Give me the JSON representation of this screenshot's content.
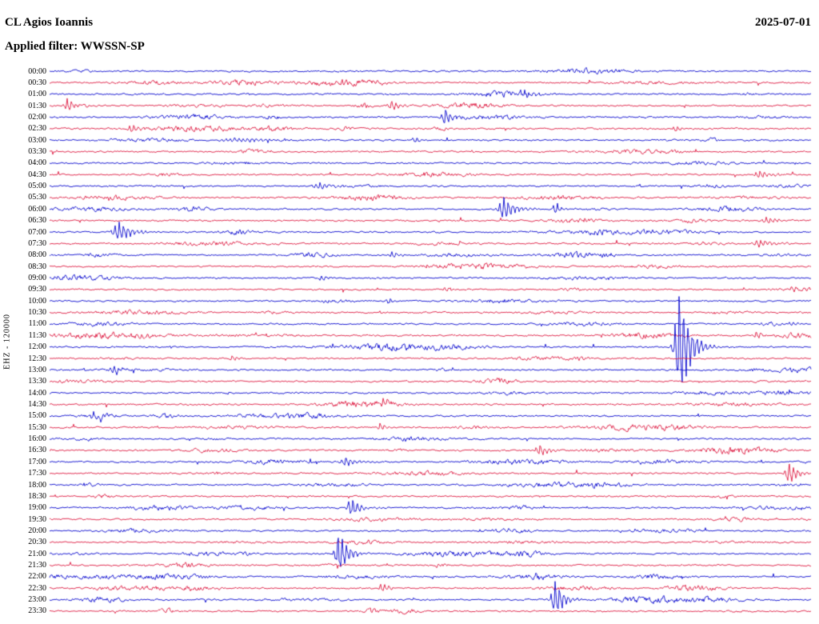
{
  "header": {
    "station": "CL Agios Ioannis",
    "date": "2025-07-01",
    "filter": "Applied filter: WWSSN-SP"
  },
  "chart_data": {
    "type": "line",
    "subtype": "helicorder-seismogram",
    "title": "CL Agios Ioannis",
    "ylabel": "EHZ - 120000",
    "rows": 48,
    "minutes_per_row": 30,
    "noise_amp": 1.15,
    "colors": {
      "even_rows": "#0000cd",
      "odd_rows": "#dc143c"
    },
    "time_labels": [
      "00:00",
      "00:30",
      "01:00",
      "01:30",
      "02:00",
      "02:30",
      "03:00",
      "03:30",
      "04:00",
      "04:30",
      "05:00",
      "05:30",
      "06:00",
      "06:30",
      "07:00",
      "07:30",
      "08:00",
      "08:30",
      "09:00",
      "09:30",
      "10:00",
      "10:30",
      "11:00",
      "11:30",
      "12:00",
      "12:30",
      "13:00",
      "13:30",
      "14:00",
      "14:30",
      "15:00",
      "15:30",
      "16:00",
      "16:30",
      "17:00",
      "17:30",
      "18:00",
      "18:30",
      "19:00",
      "19:30",
      "20:00",
      "20:30",
      "21:00",
      "21:30",
      "22:00",
      "22:30",
      "23:00",
      "23:30"
    ],
    "events": [
      {
        "time": "01:00",
        "frac": 0.623,
        "amp": 5,
        "dur": 9
      },
      {
        "time": "01:30",
        "frac": 0.024,
        "amp": 9,
        "dur": 8
      },
      {
        "time": "01:30",
        "frac": 0.45,
        "amp": 7,
        "dur": 9
      },
      {
        "time": "02:00",
        "frac": 0.52,
        "amp": 11,
        "dur": 9
      },
      {
        "time": "02:30",
        "frac": 0.108,
        "amp": 6,
        "dur": 9
      },
      {
        "time": "02:30",
        "frac": 0.822,
        "amp": 4,
        "dur": 8
      },
      {
        "time": "03:00",
        "frac": 0.25,
        "amp": 3,
        "dur": 38
      },
      {
        "time": "03:00",
        "frac": 0.481,
        "amp": 4,
        "dur": 8
      },
      {
        "time": "04:30",
        "frac": 0.933,
        "amp": 5,
        "dur": 14
      },
      {
        "time": "05:00",
        "frac": 0.355,
        "amp": 4,
        "dur": 16
      },
      {
        "time": "06:00",
        "frac": 0.597,
        "amp": 15,
        "dur": 13
      },
      {
        "time": "06:00",
        "frac": 0.665,
        "amp": 9,
        "dur": 6
      },
      {
        "time": "06:30",
        "frac": 0.943,
        "amp": 5,
        "dur": 12
      },
      {
        "time": "07:00",
        "frac": 0.092,
        "amp": 13,
        "dur": 15
      },
      {
        "time": "07:30",
        "frac": 0.933,
        "amp": 5,
        "dur": 14
      },
      {
        "time": "08:00",
        "frac": 0.45,
        "amp": 4,
        "dur": 8
      },
      {
        "time": "09:00",
        "frac": 0.357,
        "amp": 4,
        "dur": 7
      },
      {
        "time": "09:30",
        "frac": 0.519,
        "amp": 3,
        "dur": 8
      },
      {
        "time": "09:30",
        "frac": 0.975,
        "amp": 4,
        "dur": 8
      },
      {
        "time": "10:00",
        "frac": 0.446,
        "amp": 4,
        "dur": 7
      },
      {
        "time": "11:00",
        "frac": 0.975,
        "amp": 3,
        "dur": 8
      },
      {
        "time": "11:30",
        "frac": 0.928,
        "amp": 5,
        "dur": 9
      },
      {
        "time": "12:00",
        "frac": 0.828,
        "amp": 72,
        "dur": 12
      },
      {
        "time": "12:30",
        "frac": 0.24,
        "amp": 3,
        "dur": 8
      },
      {
        "time": "13:00",
        "frac": 0.085,
        "amp": 7,
        "dur": 9
      },
      {
        "time": "14:30",
        "frac": 0.439,
        "amp": 6,
        "dur": 8
      },
      {
        "time": "15:00",
        "frac": 0.056,
        "amp": 4,
        "dur": 7
      },
      {
        "time": "15:30",
        "frac": 0.434,
        "amp": 5,
        "dur": 7
      },
      {
        "time": "16:30",
        "frac": 0.644,
        "amp": 8,
        "dur": 10
      },
      {
        "time": "17:00",
        "frac": 0.389,
        "amp": 6,
        "dur": 13
      },
      {
        "time": "17:30",
        "frac": 0.972,
        "amp": 14,
        "dur": 10
      },
      {
        "time": "19:00",
        "frac": 0.397,
        "amp": 12,
        "dur": 10
      },
      {
        "time": "21:00",
        "frac": 0.381,
        "amp": 28,
        "dur": 10
      },
      {
        "time": "22:00",
        "frac": 0.64,
        "amp": 3,
        "dur": 8
      },
      {
        "time": "22:30",
        "frac": 0.437,
        "amp": 6,
        "dur": 8
      },
      {
        "time": "23:00",
        "frac": 0.665,
        "amp": 24,
        "dur": 10
      }
    ]
  }
}
